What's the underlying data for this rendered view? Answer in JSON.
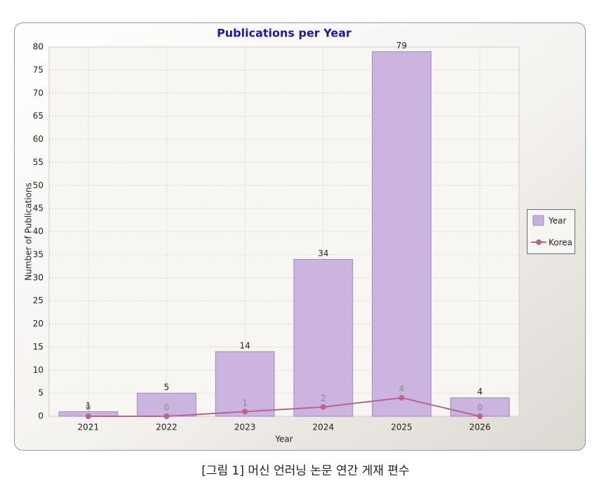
{
  "chart_data": {
    "type": "bar",
    "title": "Publications per Year",
    "x_label": "Year",
    "y_label": "Number of Publications",
    "categories": [
      "2021",
      "2022",
      "2023",
      "2024",
      "2025",
      "2026"
    ],
    "series": [
      {
        "name": "Year",
        "color": "#c8b0dd",
        "values": [
          1,
          5,
          14,
          34,
          79,
          4
        ]
      },
      {
        "name": "Korea",
        "type": "line",
        "color": "#b8658b",
        "values": [
          0,
          0,
          1,
          2,
          4,
          0
        ]
      }
    ],
    "ylim": [
      0,
      80
    ],
    "yticks": [
      0,
      5,
      10,
      15,
      20,
      25,
      30,
      35,
      40,
      45,
      50,
      55,
      60,
      65,
      70,
      75,
      80
    ],
    "grid": true,
    "legend": "right"
  },
  "caption": "[그림 1] 머신 언러닝 논문 연간 게재 편수"
}
